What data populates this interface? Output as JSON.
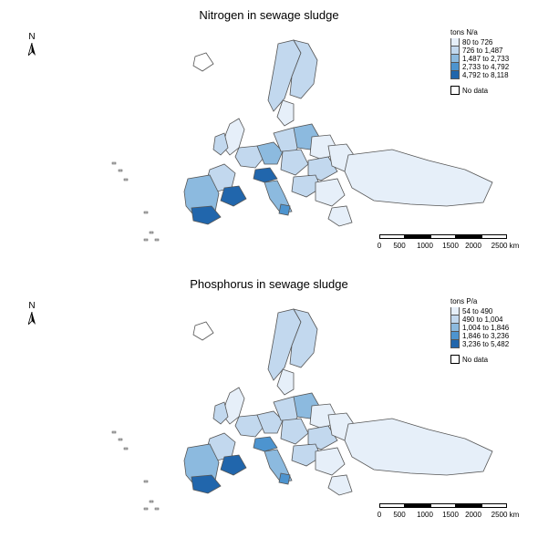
{
  "colors": {
    "class1": "#e6eff9",
    "class2": "#c2d8ee",
    "class3": "#8cbadf",
    "class4": "#4d94cf",
    "class5": "#2166ac",
    "nodata": "#ffffff",
    "border": "#555555"
  },
  "maps": [
    {
      "title": "Nitrogen in sewage sludge",
      "north_label": "N",
      "legend": {
        "title": "tons N/a",
        "classes": [
          "80 to 726",
          "726 to 1,487",
          "1,487 to 2,733",
          "2,733 to 4,792",
          "4,792 to 8,118"
        ],
        "nodata_label": "No data"
      },
      "scale_labels": [
        "0",
        "500",
        "1000",
        "1500",
        "2000",
        "2500 km"
      ]
    },
    {
      "title": "Phosphorus in sewage sludge",
      "north_label": "N",
      "legend": {
        "title": "tons P/a",
        "classes": [
          "54 to 490",
          "490 to 1,004",
          "1,004 to 1,846",
          "1,846 to 3,236",
          "3,236 to 5,482"
        ],
        "nodata_label": "No data"
      },
      "scale_labels": [
        "0",
        "500",
        "1000",
        "1500",
        "2000",
        "2500 km"
      ]
    }
  ]
}
